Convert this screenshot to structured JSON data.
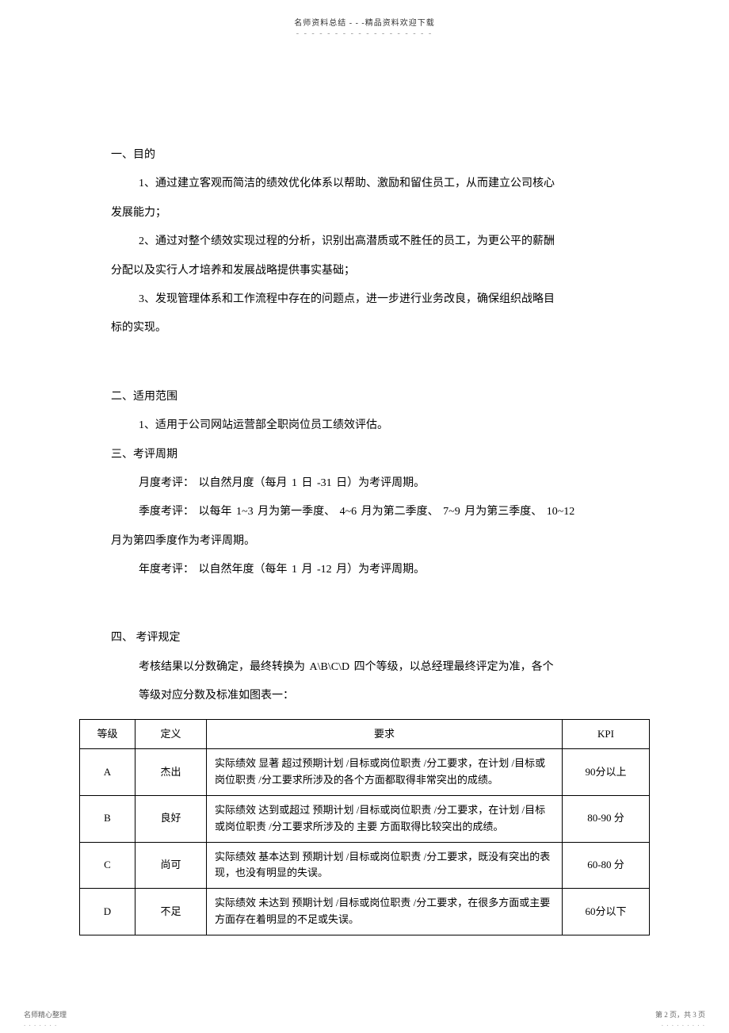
{
  "header": {
    "title": "名师资料总结 - - -精品资料欢迎下载",
    "dots": "- - - - - - - - - - - - - - - - - -"
  },
  "section1": {
    "title": "一、目的",
    "item1": "1、通过建立客观而简洁的绩效优化体系以帮助、激励和留住员工，从而建立公司核心",
    "item1b": "发展能力；",
    "item2": "2、通过对整个绩效实现过程的分析，识别出高潜质或不胜任的员工，为更公平的薪酬",
    "item2b": "分配以及实行人才培养和发展战略提供事实基础；",
    "item3": "3、发现管理体系和工作流程中存在的问题点，进一步进行业务改良，确保组织战略目",
    "item3b": "标的实现。"
  },
  "section2": {
    "title": "二、适用范围",
    "item1": "1、适用于公司网站运营部全职岗位员工绩效评估。"
  },
  "section3": {
    "title": "三、考评周期",
    "item1": "月度考评：  以自然月度（每月    1 日 -31 日）为考评周期。",
    "item2": "季度考评：  以每年  1~3 月为第一季度、   4~6 月为第二季度、   7~9 月为第三季度、   10~12",
    "item2b": "月为第四季度作为考评周期。",
    "item3": "年度考评：  以自然年度（每年    1 月 -12 月）为考评周期。"
  },
  "section4": {
    "title": "四、    考评规定",
    "item1": "考核结果以分数确定，最终转换为        A\\B\\C\\D    四个等级，以总经理最终评定为准，各个",
    "item2": "等级对应分数及标准如图表一："
  },
  "table": {
    "headers": {
      "grade": "等级",
      "def": "定义",
      "req": "要求",
      "kpi": "KPI"
    },
    "rows": [
      {
        "grade": "A",
        "def": "杰出",
        "req": "实际绩效 显著 超过预期计划  /目标或岗位职责   /分工要求，在计划 /目标或岗位职责   /分工要求所涉及的各个方面都取得非常突出的成绩。",
        "kpi": "90分以上"
      },
      {
        "grade": "B",
        "def": "良好",
        "req": "实际绩效 达到或超过  预期计划  /目标或岗位职责   /分工要求，在计划 /目标或岗位职责   /分工要求所涉及的   主要 方面取得比较突出的成绩。",
        "kpi": "80-90 分"
      },
      {
        "grade": "C",
        "def": "尚可",
        "req": "实际绩效 基本达到  预期计划  /目标或岗位职责   /分工要求，既没有突出的表现，也没有明显的失误。",
        "kpi": "60-80 分"
      },
      {
        "grade": "D",
        "def": "不足",
        "req": "实际绩效 未达到  预期计划 /目标或岗位职责   /分工要求，在很多方面或主要方面存在着明显的不足或失误。",
        "kpi": "60分以下"
      }
    ]
  },
  "footer": {
    "left": "名师精心整理",
    "leftDots": ". . . . . . .",
    "right": "第 2 页，共 3 页",
    "rightDots": ". . . . . . . . ."
  }
}
